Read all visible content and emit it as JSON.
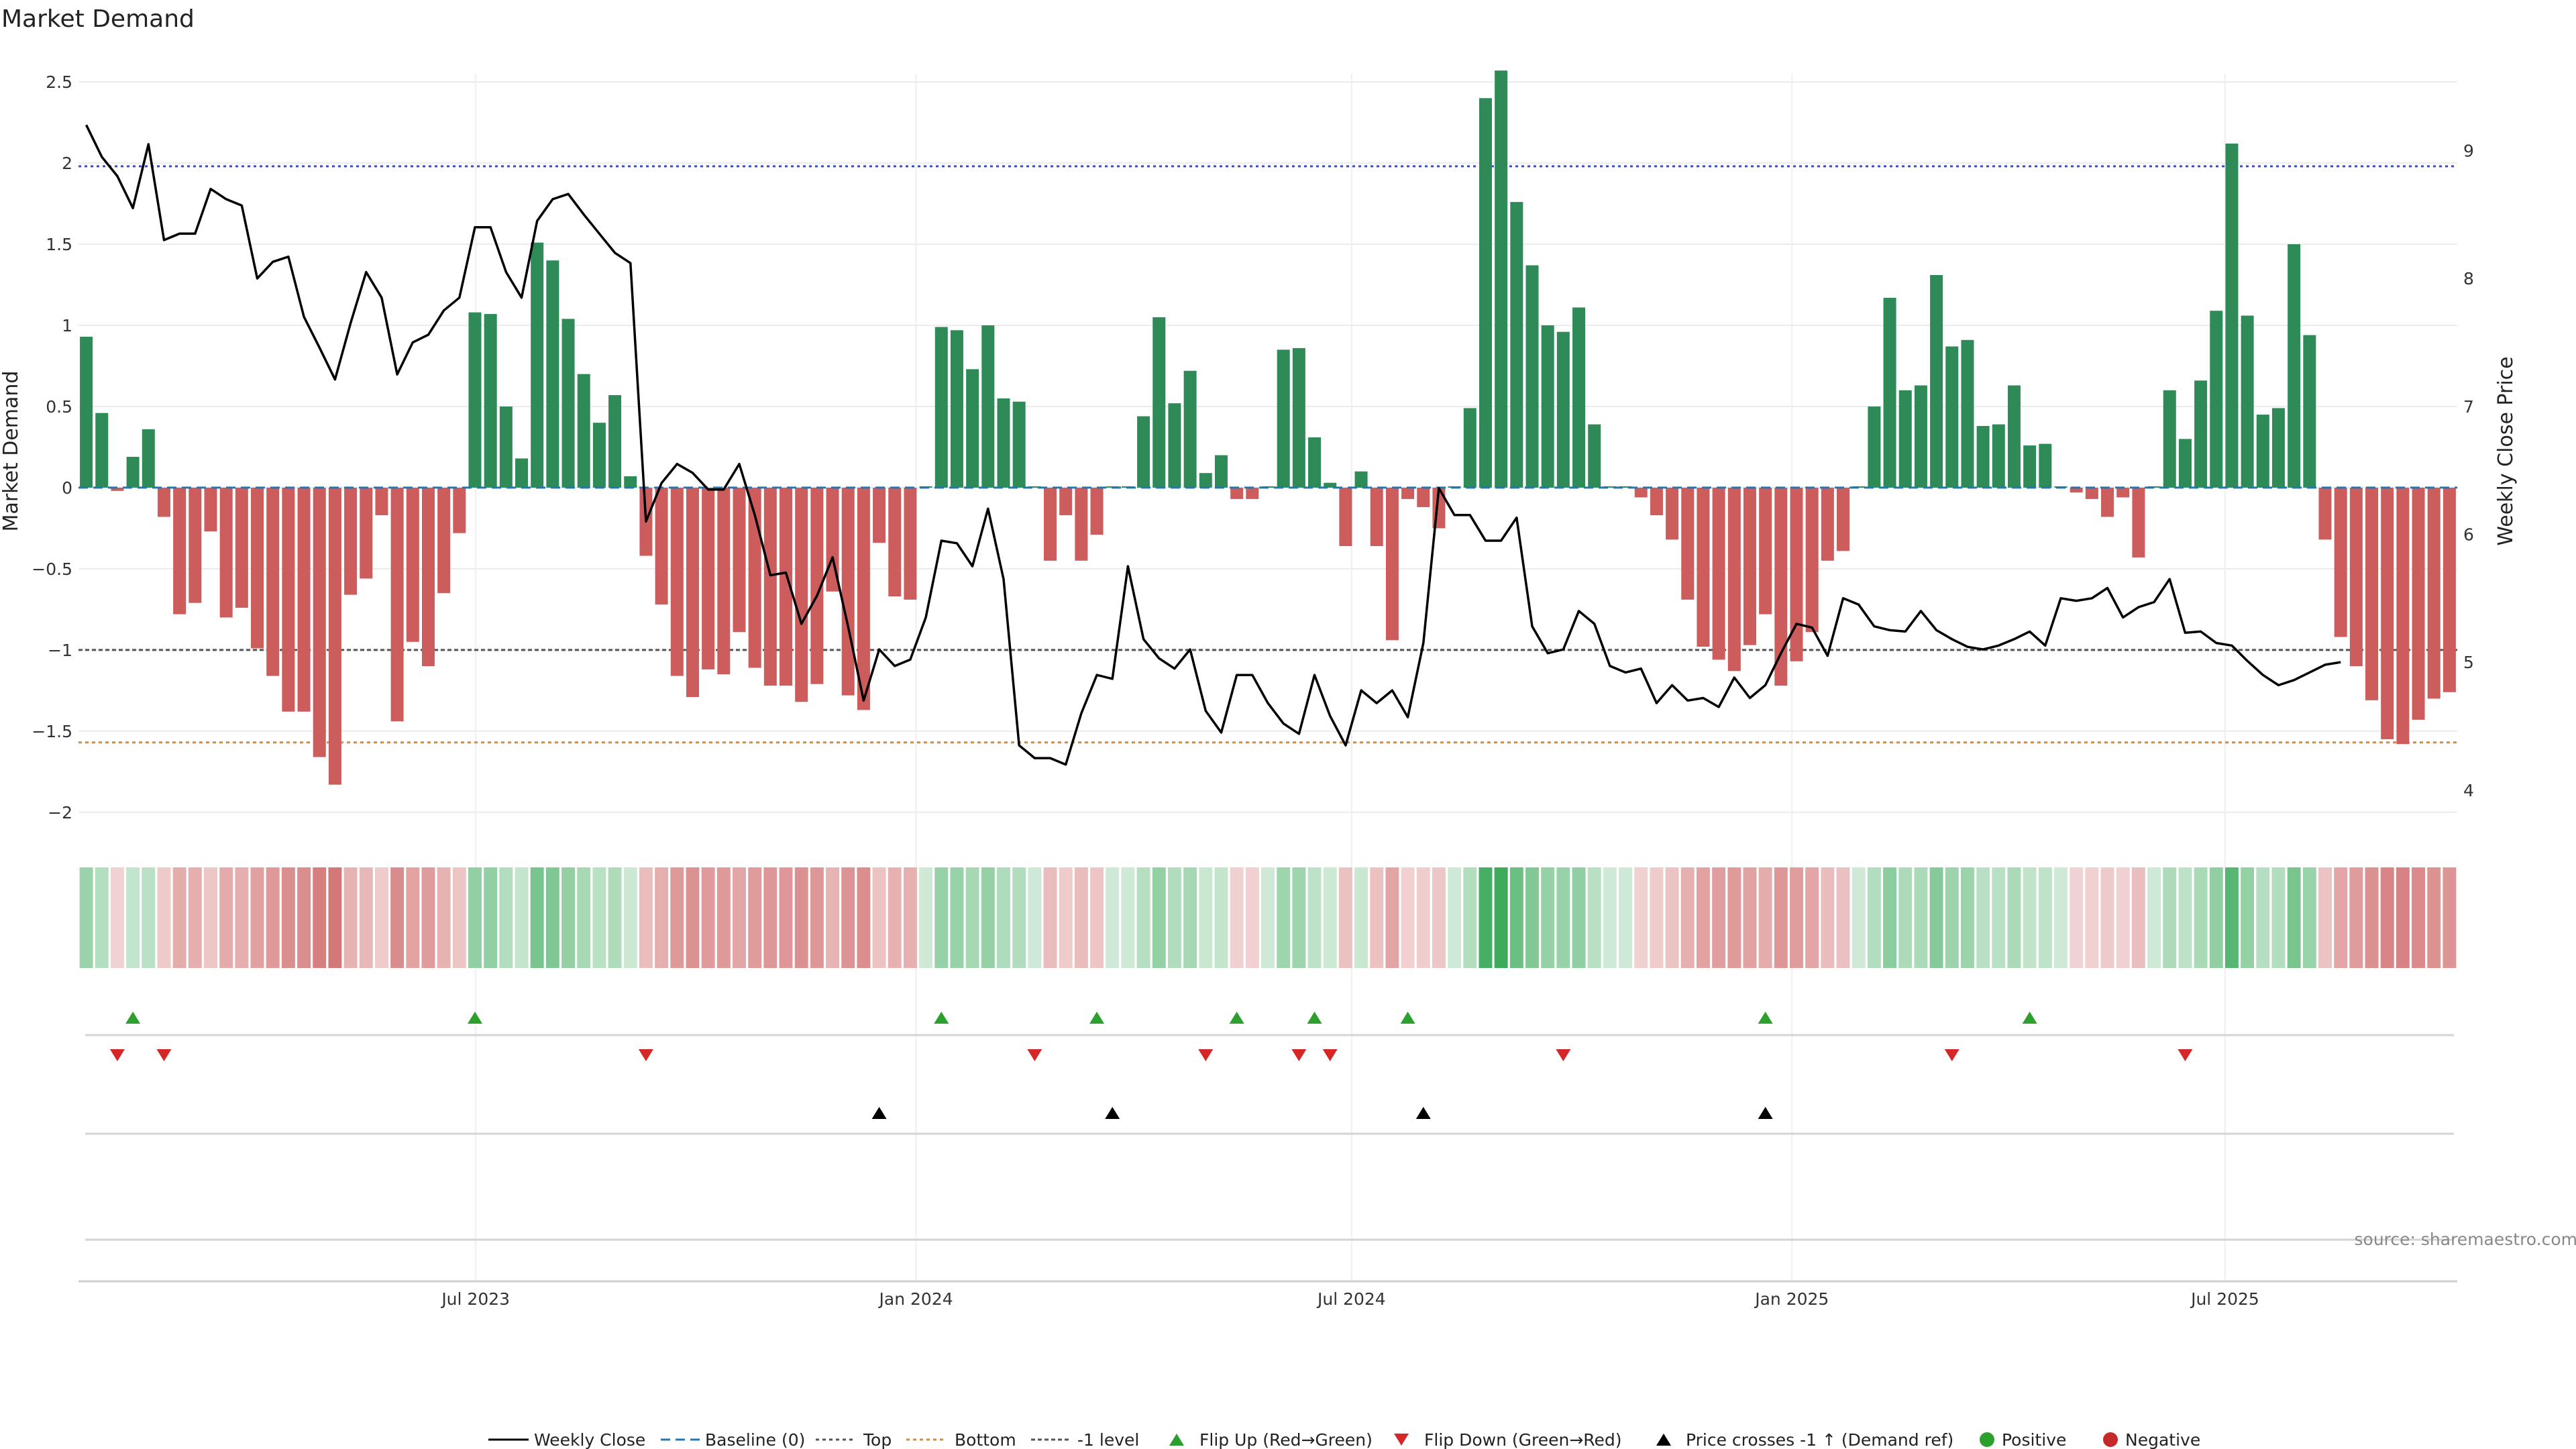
{
  "chart_data": {
    "type": "bar",
    "title": "Market Demand",
    "ylabel": "Market Demand",
    "y2label": "Weekly Close Price",
    "ylim": [
      -2.1,
      2.55
    ],
    "y2lim": [
      3.7,
      9.6
    ],
    "yticks": [
      -2,
      -1.5,
      -1,
      -0.5,
      0,
      0.5,
      1,
      1.5,
      2,
      2.5
    ],
    "y2ticks": [
      4,
      5,
      6,
      7,
      8,
      9
    ],
    "levels": {
      "top": 1.98,
      "bottom": -1.57,
      "minus_one": -1
    },
    "x_start": "2023-01-16",
    "x_end": "2025-10-06",
    "xticks": [
      {
        "date": "2023-07-01",
        "label": "Jul 2023"
      },
      {
        "date": "2024-01-01",
        "label": "Jan 2024"
      },
      {
        "date": "2024-07-01",
        "label": "Jul 2024"
      },
      {
        "date": "2025-01-01",
        "label": "Jan 2025"
      },
      {
        "date": "2025-07-01",
        "label": "Jul 2025"
      }
    ],
    "series": [
      {
        "name": "Market Demand",
        "type": "bar",
        "values": [
          0.93,
          0.46,
          -0.02,
          0.19,
          0.36,
          -0.18,
          -0.78,
          -0.71,
          -0.27,
          -0.8,
          -0.74,
          -0.99,
          -1.16,
          -1.38,
          -1.38,
          -1.66,
          -1.83,
          -0.66,
          -0.56,
          -0.17,
          -1.44,
          -0.95,
          -1.1,
          -0.65,
          -0.28,
          1.08,
          1.07,
          0.5,
          0.18,
          1.51,
          1.4,
          1.04,
          0.7,
          0.4,
          0.57,
          0.07,
          -0.42,
          -0.72,
          -1.16,
          -1.29,
          -1.12,
          -1.15,
          -0.89,
          -1.11,
          -1.22,
          -1.22,
          -1.32,
          -1.21,
          -0.64,
          -1.28,
          -1.37,
          -0.34,
          -0.67,
          -0.69,
          0.0,
          0.99,
          0.97,
          0.73,
          1.0,
          0.55,
          0.53,
          0.0,
          -0.45,
          -0.17,
          -0.45,
          -0.29,
          0.0,
          0.0,
          0.44,
          1.05,
          0.52,
          0.72,
          0.09,
          0.2,
          -0.07,
          -0.07,
          0.0,
          0.85,
          0.86,
          0.31,
          0.03,
          -0.36,
          0.1,
          -0.36,
          -0.94,
          -0.07,
          -0.12,
          -0.25,
          0.0,
          0.49,
          2.4,
          2.57,
          1.76,
          1.37,
          1.0,
          0.96,
          1.11,
          0.39,
          0.0,
          0.0,
          -0.06,
          -0.17,
          -0.32,
          -0.69,
          -0.98,
          -1.06,
          -1.13,
          -0.97,
          -0.78,
          -1.22,
          -1.07,
          -0.89,
          -0.45,
          -0.39,
          0.0,
          0.5,
          1.17,
          0.6,
          0.63,
          1.31,
          0.87,
          0.91,
          0.38,
          0.39,
          0.63,
          0.26,
          0.27,
          0.0,
          -0.03,
          -0.07,
          -0.18,
          -0.06,
          -0.43,
          0.0,
          0.6,
          0.3,
          0.66,
          1.09,
          2.12,
          1.06,
          0.45,
          0.49,
          1.5,
          0.94,
          -0.32,
          -0.92,
          -1.1,
          -1.31,
          -1.55,
          -1.58,
          -1.43,
          -1.3,
          -1.26
        ]
      },
      {
        "name": "Weekly Close",
        "type": "line",
        "values": [
          9.2,
          8.95,
          8.8,
          8.55,
          9.05,
          8.3,
          8.35,
          8.35,
          8.7,
          8.62,
          8.57,
          8.0,
          8.13,
          8.17,
          7.7,
          7.46,
          7.21,
          7.65,
          8.05,
          7.85,
          7.25,
          7.5,
          7.56,
          7.75,
          7.85,
          8.4,
          8.4,
          8.05,
          7.85,
          8.45,
          8.62,
          8.66,
          8.5,
          8.35,
          8.2,
          8.12,
          6.1,
          6.4,
          6.55,
          6.48,
          6.35,
          6.35,
          6.55,
          6.15,
          5.68,
          5.7,
          5.3,
          5.52,
          5.82,
          5.28,
          4.7,
          5.1,
          4.97,
          5.02,
          5.35,
          5.95,
          5.93,
          5.75,
          6.2,
          5.65,
          4.35,
          4.25,
          4.25,
          4.2,
          4.6,
          4.9,
          4.87,
          5.75,
          5.18,
          5.03,
          4.95,
          5.1,
          4.62,
          4.45,
          4.9,
          4.9,
          4.68,
          4.52,
          4.44,
          4.9,
          4.58,
          4.35,
          4.78,
          4.68,
          4.78,
          4.57,
          5.15,
          6.36,
          6.15,
          6.15,
          5.95,
          5.95,
          6.13,
          5.28,
          5.07,
          5.1,
          5.4,
          5.3,
          4.97,
          4.92,
          4.95,
          4.68,
          4.82,
          4.7,
          4.72,
          4.65,
          4.88,
          4.72,
          4.82,
          5.07,
          5.3,
          5.27,
          5.05,
          5.5,
          5.45,
          5.28,
          5.25,
          5.24,
          5.4,
          5.25,
          5.18,
          5.12,
          5.1,
          5.13,
          5.18,
          5.24,
          5.13,
          5.5,
          5.48,
          5.5,
          5.58,
          5.35,
          5.43,
          5.47,
          5.65,
          5.23,
          5.24,
          5.15,
          5.13,
          5.01,
          4.9,
          4.82,
          4.86,
          4.92,
          4.98,
          5.0
        ]
      }
    ],
    "flip_up_weeks": [
      3,
      25,
      55,
      65,
      74,
      79,
      85,
      108,
      125
    ],
    "flip_down_weeks": [
      2,
      5,
      36,
      61,
      72,
      78,
      80,
      95,
      120,
      135
    ],
    "price_cross_weeks": [
      51,
      66,
      86,
      108
    ],
    "legend": [
      "Weekly Close",
      "Baseline (0)",
      "Top",
      "Bottom",
      "-1 level",
      "Flip Up (Red→Green)",
      "Flip Down (Green→Red)",
      "Price crosses -1 ↑ (Demand ref)",
      "Positive",
      "Negative"
    ],
    "legend_position": "bottom",
    "source": "source: sharemaestro.com",
    "colors": {
      "positive": "#2e8b57",
      "negative": "#cd5c5c",
      "price": "#000000",
      "baseline": "#1f77b4",
      "top": "#3b4cc0",
      "bottom": "#e08a2c",
      "minus_one": "#555555",
      "flip_up": "#2ca02c",
      "flip_down": "#d62728",
      "cross": "#000000",
      "positive_dot": "#2ca02c",
      "negative_dot": "#c42a2a"
    },
    "grid": true
  }
}
